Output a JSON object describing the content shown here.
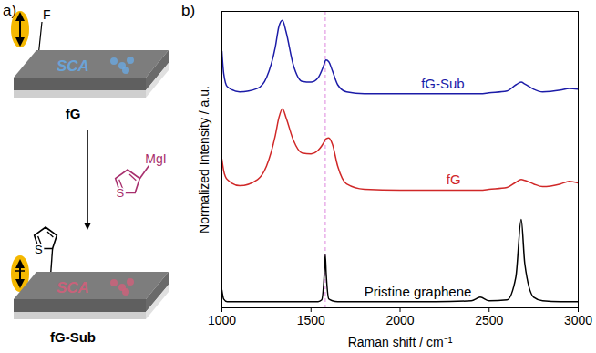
{
  "schematic": {
    "panel_label": "a)",
    "top": {
      "label": "fG",
      "atom": "F",
      "surface_text": "SCA"
    },
    "reagent": {
      "group": "MgI",
      "ring_atom": "S"
    },
    "bottom": {
      "label": "fG-Sub",
      "ring_atom": "S",
      "surface_text": "SCA"
    }
  },
  "chart_data": {
    "type": "line",
    "panel_label": "b)",
    "x_label": "Raman shift / cm⁻¹",
    "y_label": "Normalized Intensity / a.u.",
    "xlim": [
      1000,
      3000
    ],
    "xticks": [
      1000,
      1500,
      2000,
      2500,
      3000
    ],
    "ylim": [
      0,
      3.35
    ],
    "yticks": [],
    "tick_labels": "x",
    "grid": false,
    "vline": 1580,
    "x": [
      1000,
      1010,
      1030,
      1100,
      1200,
      1250,
      1300,
      1320,
      1340,
      1360,
      1400,
      1450,
      1500,
      1540,
      1560,
      1575,
      1580,
      1585,
      1600,
      1620,
      1650,
      1700,
      1800,
      2000,
      2200,
      2400,
      2450,
      2500,
      2600,
      2650,
      2680,
      2700,
      2750,
      2800,
      2900,
      2950,
      3000
    ],
    "series": [
      {
        "name": "fG-Sub",
        "color": "#1c1ca8",
        "values": [
          2.9,
          2.65,
          2.5,
          2.44,
          2.48,
          2.6,
          2.95,
          3.18,
          3.25,
          3.12,
          2.75,
          2.56,
          2.55,
          2.6,
          2.68,
          2.76,
          2.79,
          2.8,
          2.78,
          2.68,
          2.52,
          2.44,
          2.42,
          2.42,
          2.42,
          2.42,
          2.42,
          2.43,
          2.45,
          2.52,
          2.55,
          2.53,
          2.47,
          2.44,
          2.46,
          2.48,
          2.47
        ]
      },
      {
        "name": "fG",
        "color": "#d02828",
        "values": [
          1.68,
          1.55,
          1.45,
          1.38,
          1.45,
          1.6,
          1.95,
          2.15,
          2.25,
          2.15,
          1.9,
          1.75,
          1.74,
          1.78,
          1.83,
          1.88,
          1.9,
          1.91,
          1.92,
          1.85,
          1.6,
          1.4,
          1.34,
          1.33,
          1.33,
          1.33,
          1.33,
          1.34,
          1.36,
          1.42,
          1.45,
          1.44,
          1.4,
          1.37,
          1.4,
          1.43,
          1.41
        ]
      },
      {
        "name": "Pristine graphene",
        "color": "#000000",
        "values": [
          0.2,
          0.1,
          0.07,
          0.07,
          0.07,
          0.07,
          0.07,
          0.07,
          0.07,
          0.07,
          0.07,
          0.07,
          0.07,
          0.07,
          0.09,
          0.4,
          0.6,
          0.4,
          0.1,
          0.08,
          0.07,
          0.07,
          0.07,
          0.07,
          0.07,
          0.08,
          0.12,
          0.08,
          0.09,
          0.35,
          1.0,
          0.5,
          0.12,
          0.08,
          0.07,
          0.07,
          0.07
        ]
      }
    ]
  }
}
